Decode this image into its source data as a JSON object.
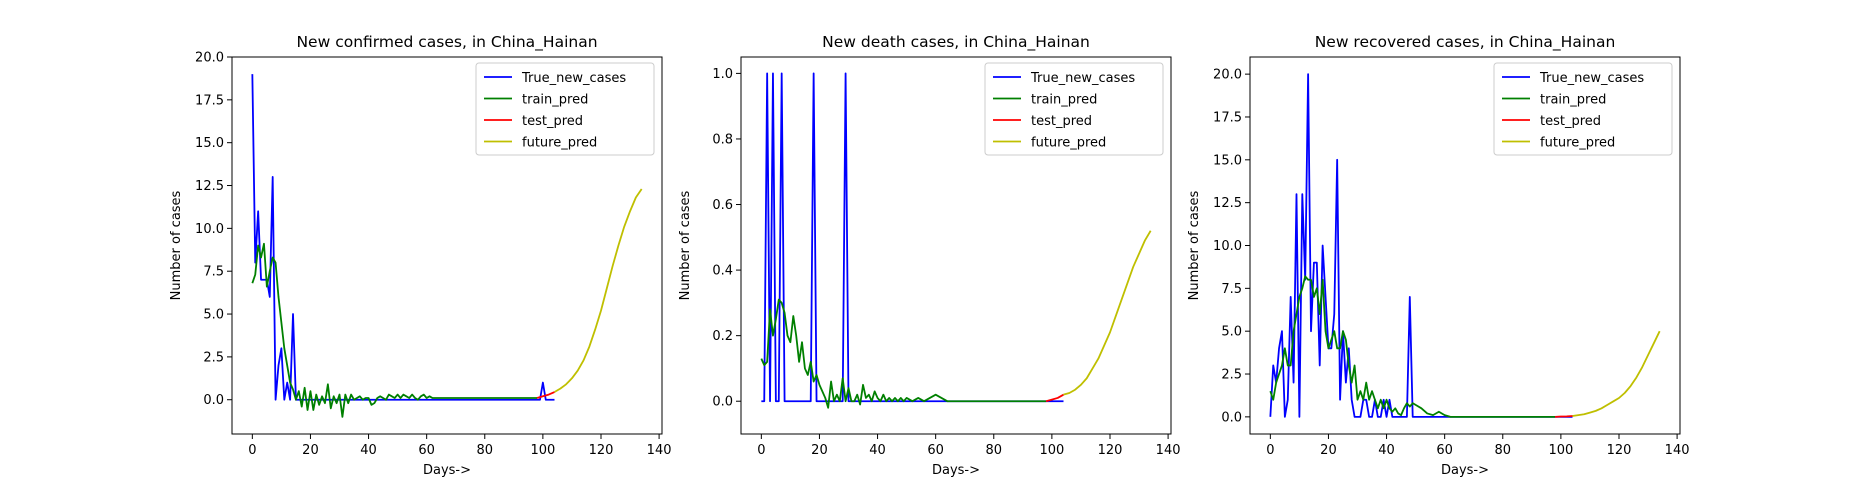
{
  "chart_data": [
    {
      "type": "line",
      "title": "New confirmed cases, in China_Hainan",
      "xlabel": "Days->",
      "ylabel": "Number of cases",
      "xlim": [
        -7,
        141
      ],
      "ylim": [
        -2.0,
        20.0
      ],
      "xticks": [
        0,
        20,
        40,
        60,
        80,
        100,
        120,
        140
      ],
      "yticks": [
        0.0,
        2.5,
        5.0,
        7.5,
        10.0,
        12.5,
        15.0,
        17.5,
        20.0
      ],
      "ytick_labels": [
        "0.0",
        "2.5",
        "5.0",
        "7.5",
        "10.0",
        "12.5",
        "15.0",
        "17.5",
        "20.0"
      ],
      "legend": "top-right",
      "series": [
        {
          "name": "True_new_cases",
          "color": "#0000ff",
          "x": [
            0,
            1,
            2,
            3,
            4,
            5,
            6,
            7,
            8,
            9,
            10,
            11,
            12,
            13,
            14,
            15,
            16,
            20,
            40,
            60,
            80,
            98,
            99,
            100,
            101,
            102,
            103,
            104
          ],
          "y": [
            19,
            8,
            11,
            7,
            7,
            7,
            6,
            13,
            0,
            2,
            3,
            0,
            1,
            0,
            5,
            0,
            0,
            0,
            0,
            0,
            0,
            0,
            0,
            1,
            0,
            0,
            0,
            0
          ]
        },
        {
          "name": "train_pred",
          "color": "#008000",
          "x": [
            0,
            1,
            2,
            3,
            4,
            5,
            6,
            7,
            8,
            9,
            10,
            11,
            12,
            13,
            14,
            15,
            16,
            17,
            18,
            19,
            20,
            21,
            22,
            23,
            24,
            25,
            26,
            27,
            28,
            29,
            30,
            31,
            32,
            33,
            34,
            35,
            36,
            37,
            38,
            39,
            40,
            41,
            42,
            43,
            44,
            45,
            46,
            47,
            48,
            49,
            50,
            51,
            52,
            53,
            54,
            55,
            56,
            57,
            58,
            59,
            60,
            61,
            62,
            70,
            80,
            90,
            98
          ],
          "y": [
            6.8,
            7.3,
            9.0,
            8.3,
            9.1,
            6.6,
            7.5,
            8.3,
            8.0,
            6.0,
            4.5,
            3.0,
            2.0,
            1.0,
            0.6,
            0.0,
            0.5,
            -0.4,
            0.7,
            -0.6,
            0.5,
            -0.6,
            0.3,
            -0.3,
            0.2,
            -0.2,
            0.9,
            -0.5,
            0.2,
            -0.2,
            0.3,
            -1.0,
            0.3,
            -0.2,
            0.3,
            0.0,
            0.1,
            0.2,
            0.0,
            0.1,
            0.1,
            -0.3,
            -0.2,
            0.1,
            0.2,
            0.1,
            0.0,
            0.3,
            0.2,
            0.1,
            0.3,
            0.1,
            0.3,
            0.2,
            0.1,
            0.3,
            0.1,
            0.0,
            0.2,
            0.3,
            0.1,
            0.2,
            0.1,
            0.1,
            0.1,
            0.1,
            0.1
          ]
        },
        {
          "name": "test_pred",
          "color": "#ff0000",
          "x": [
            98,
            100,
            102,
            104
          ],
          "y": [
            0.1,
            0.2,
            0.3,
            0.45
          ]
        },
        {
          "name": "future_pred",
          "color": "#bfbf00",
          "x": [
            104,
            106,
            108,
            110,
            112,
            114,
            116,
            118,
            120,
            122,
            124,
            126,
            128,
            130,
            132,
            134
          ],
          "y": [
            0.45,
            0.65,
            0.9,
            1.25,
            1.7,
            2.3,
            3.1,
            4.1,
            5.2,
            6.5,
            7.8,
            9.0,
            10.1,
            11.0,
            11.8,
            12.3
          ]
        }
      ]
    },
    {
      "type": "line",
      "title": "New death cases, in China_Hainan",
      "xlabel": "Days->",
      "ylabel": "Number of cases",
      "xlim": [
        -7,
        141
      ],
      "ylim": [
        -0.1,
        1.05
      ],
      "xticks": [
        0,
        20,
        40,
        60,
        80,
        100,
        120,
        140
      ],
      "yticks": [
        0.0,
        0.2,
        0.4,
        0.6,
        0.8,
        1.0
      ],
      "ytick_labels": [
        "0.0",
        "0.2",
        "0.4",
        "0.6",
        "0.8",
        "1.0"
      ],
      "legend": "top-right",
      "series": [
        {
          "name": "True_new_cases",
          "color": "#0000ff",
          "x": [
            0,
            1,
            2,
            3,
            4,
            5,
            6,
            7,
            8,
            17,
            18,
            19,
            28,
            29,
            30,
            104
          ],
          "y": [
            0,
            0,
            1,
            0,
            1,
            0,
            0,
            1,
            0,
            0,
            1,
            0,
            0,
            1,
            0,
            0
          ]
        },
        {
          "name": "train_pred",
          "color": "#008000",
          "x": [
            0,
            1,
            2,
            3,
            4,
            5,
            6,
            7,
            8,
            9,
            10,
            11,
            12,
            13,
            14,
            15,
            16,
            17,
            18,
            19,
            20,
            21,
            22,
            23,
            24,
            25,
            26,
            27,
            28,
            29,
            30,
            31,
            32,
            33,
            34,
            35,
            36,
            37,
            38,
            39,
            40,
            41,
            42,
            43,
            44,
            45,
            46,
            47,
            48,
            49,
            50,
            52,
            54,
            56,
            58,
            60,
            62,
            64,
            70,
            80,
            90,
            98
          ],
          "y": [
            0.13,
            0.11,
            0.12,
            0.28,
            0.2,
            0.25,
            0.31,
            0.3,
            0.27,
            0.2,
            0.18,
            0.26,
            0.2,
            0.12,
            0.18,
            0.1,
            0.08,
            0.12,
            0.06,
            0.08,
            0.05,
            0.03,
            0.01,
            -0.02,
            0.06,
            0.0,
            0.02,
            0.0,
            0.07,
            0.0,
            0.04,
            0.0,
            0.0,
            0.02,
            -0.01,
            0.05,
            0.01,
            0.02,
            0.0,
            0.03,
            0.01,
            0.0,
            0.02,
            0.0,
            0.01,
            0.0,
            0.01,
            0.0,
            0.01,
            0.0,
            0.01,
            0.0,
            0.01,
            0.0,
            0.01,
            0.02,
            0.01,
            0.0,
            0.0,
            0.0,
            0.0,
            0.0
          ]
        },
        {
          "name": "test_pred",
          "color": "#ff0000",
          "x": [
            98,
            100,
            102,
            104
          ],
          "y": [
            0.0,
            0.005,
            0.01,
            0.02
          ]
        },
        {
          "name": "future_pred",
          "color": "#bfbf00",
          "x": [
            104,
            106,
            108,
            110,
            112,
            114,
            116,
            118,
            120,
            122,
            124,
            126,
            128,
            130,
            132,
            134
          ],
          "y": [
            0.02,
            0.025,
            0.035,
            0.05,
            0.07,
            0.1,
            0.13,
            0.17,
            0.21,
            0.26,
            0.31,
            0.36,
            0.41,
            0.45,
            0.49,
            0.52
          ]
        }
      ]
    },
    {
      "type": "line",
      "title": "New recovered cases, in China_Hainan",
      "xlabel": "Days->",
      "ylabel": "Number of cases",
      "xlim": [
        -7,
        141
      ],
      "ylim": [
        -1.0,
        21.0
      ],
      "xticks": [
        0,
        20,
        40,
        60,
        80,
        100,
        120,
        140
      ],
      "yticks": [
        0.0,
        2.5,
        5.0,
        7.5,
        10.0,
        12.5,
        15.0,
        17.5,
        20.0
      ],
      "ytick_labels": [
        "0.0",
        "2.5",
        "5.0",
        "7.5",
        "10.0",
        "12.5",
        "15.0",
        "17.5",
        "20.0"
      ],
      "legend": "top-right",
      "series": [
        {
          "name": "True_new_cases",
          "color": "#0000ff",
          "x": [
            0,
            1,
            2,
            3,
            4,
            5,
            6,
            7,
            8,
            9,
            10,
            11,
            12,
            13,
            14,
            15,
            16,
            17,
            18,
            19,
            20,
            21,
            22,
            23,
            24,
            25,
            26,
            27,
            28,
            29,
            30,
            31,
            32,
            33,
            34,
            35,
            36,
            37,
            38,
            39,
            40,
            41,
            42,
            43,
            44,
            45,
            46,
            47,
            48,
            49,
            50,
            104
          ],
          "y": [
            0,
            3,
            2,
            4,
            5,
            0,
            1,
            7,
            2,
            13,
            0,
            13,
            8,
            20,
            5,
            9,
            9,
            3,
            10,
            7,
            4,
            4,
            6,
            15,
            1,
            5,
            2,
            4,
            1,
            0,
            0,
            0,
            1,
            1,
            0,
            0,
            1,
            0,
            0,
            1,
            0,
            1,
            0,
            0,
            0,
            0,
            0,
            0,
            7,
            0,
            0,
            0
          ]
        },
        {
          "name": "train_pred",
          "color": "#008000",
          "x": [
            0,
            1,
            2,
            3,
            4,
            5,
            6,
            7,
            8,
            9,
            10,
            11,
            12,
            13,
            14,
            15,
            16,
            17,
            18,
            19,
            20,
            21,
            22,
            23,
            24,
            25,
            26,
            27,
            28,
            29,
            30,
            31,
            32,
            33,
            34,
            35,
            36,
            37,
            38,
            39,
            40,
            41,
            42,
            43,
            44,
            45,
            46,
            47,
            48,
            49,
            50,
            52,
            54,
            56,
            58,
            60,
            62,
            64,
            70,
            80,
            90,
            98
          ],
          "y": [
            1.5,
            1.0,
            2.0,
            2.5,
            3.0,
            4.0,
            3.0,
            3.0,
            5.0,
            6.0,
            7.0,
            7.5,
            8.2,
            8.0,
            8.0,
            7.0,
            7.5,
            6.0,
            8.0,
            5.0,
            4.0,
            4.5,
            5.0,
            4.0,
            4.0,
            5.0,
            4.5,
            3.0,
            2.0,
            3.0,
            1.0,
            1.5,
            1.0,
            2.0,
            1.0,
            1.5,
            1.0,
            0.5,
            1.0,
            0.5,
            1.0,
            0.5,
            0.3,
            0.5,
            0.2,
            0.1,
            0.5,
            0.8,
            0.6,
            0.8,
            0.7,
            0.5,
            0.2,
            0.1,
            0.3,
            0.1,
            0.0,
            0.0,
            0.0,
            0.0,
            0.0,
            0.0
          ]
        },
        {
          "name": "test_pred",
          "color": "#ff0000",
          "x": [
            98,
            100,
            102,
            104
          ],
          "y": [
            0.0,
            0.02,
            0.03,
            0.05
          ]
        },
        {
          "name": "future_pred",
          "color": "#bfbf00",
          "x": [
            104,
            106,
            108,
            110,
            112,
            114,
            116,
            118,
            120,
            122,
            124,
            126,
            128,
            130,
            132,
            134
          ],
          "y": [
            0.05,
            0.1,
            0.15,
            0.25,
            0.35,
            0.5,
            0.7,
            0.9,
            1.1,
            1.4,
            1.8,
            2.3,
            2.9,
            3.6,
            4.3,
            5.0
          ]
        }
      ]
    }
  ]
}
